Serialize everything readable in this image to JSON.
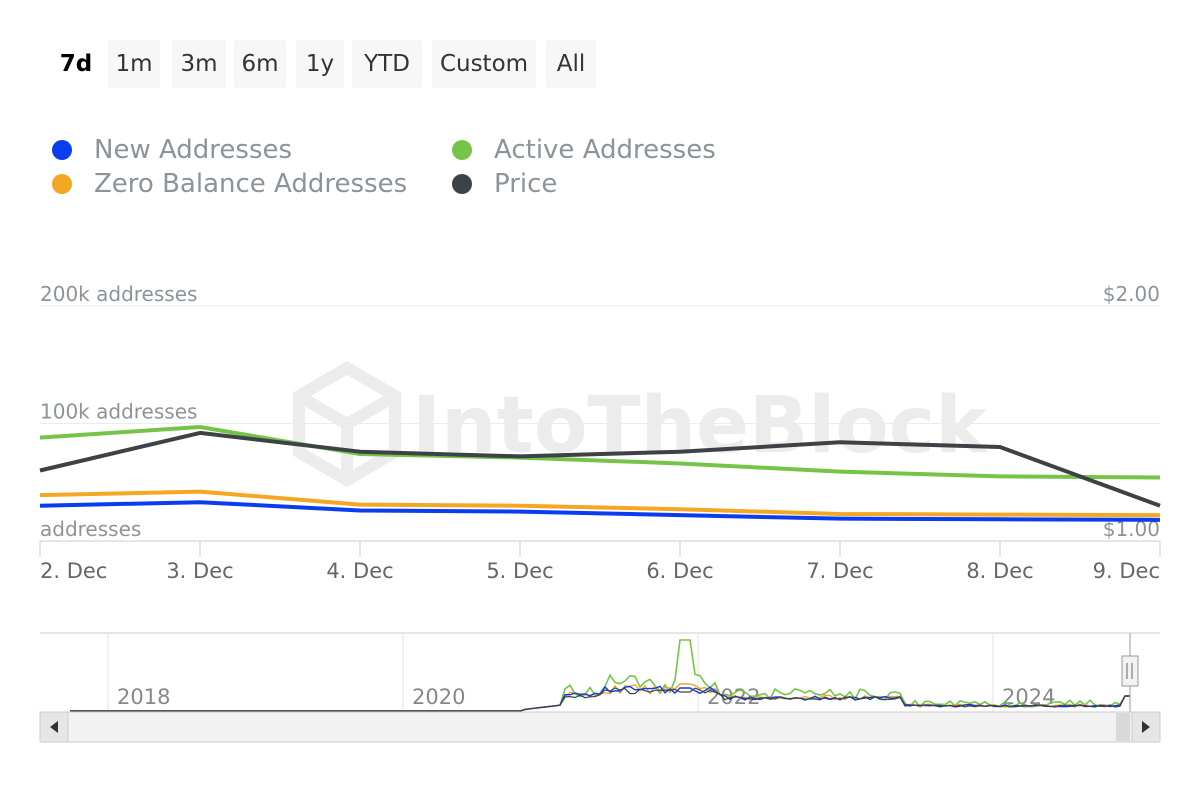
{
  "range_selector": {
    "buttons": [
      {
        "label": "7d",
        "active": true
      },
      {
        "label": "1m",
        "active": false
      },
      {
        "label": "3m",
        "active": false
      },
      {
        "label": "6m",
        "active": false
      },
      {
        "label": "1y",
        "active": false
      },
      {
        "label": "YTD",
        "active": false
      },
      {
        "label": "Custom",
        "active": false
      },
      {
        "label": "All",
        "active": false
      }
    ]
  },
  "watermark": "IntoTheBlock",
  "colors": {
    "new_addresses": "#0a3cf0",
    "active_addresses": "#76c447",
    "zero_balance": "#f5a623",
    "price": "#3d4247"
  },
  "chart_data": {
    "type": "line",
    "x": [
      "2. Dec",
      "3. Dec",
      "4. Dec",
      "5. Dec",
      "6. Dec",
      "7. Dec",
      "8. Dec",
      "9. Dec"
    ],
    "left_axis": {
      "ticks": [
        "200k addresses",
        "100k addresses",
        "addresses"
      ],
      "range": [
        0,
        200000
      ]
    },
    "right_axis": {
      "ticks": [
        "$2.00",
        "$1.00"
      ],
      "range": [
        1.0,
        2.0
      ]
    },
    "series": [
      {
        "name": "New Addresses",
        "axis": "left",
        "color": "#0a3cf0",
        "values": [
          30000,
          33000,
          26000,
          25000,
          22000,
          19000,
          18500,
          18000
        ]
      },
      {
        "name": "Active Addresses",
        "axis": "left",
        "color": "#76c447",
        "values": [
          88000,
          97000,
          74000,
          71000,
          66000,
          59000,
          55000,
          54000
        ]
      },
      {
        "name": "Zero Balance Addresses",
        "axis": "left",
        "color": "#f5a623",
        "values": [
          39000,
          42000,
          31000,
          30000,
          27000,
          23000,
          22500,
          22000
        ]
      },
      {
        "name": "Price",
        "axis": "right",
        "color": "#3d4247",
        "values": [
          1.3,
          1.46,
          1.38,
          1.36,
          1.38,
          1.42,
          1.4,
          1.15
        ]
      }
    ],
    "navigator": {
      "year_labels": [
        "2018",
        "2020",
        "2022",
        "2024"
      ]
    }
  }
}
